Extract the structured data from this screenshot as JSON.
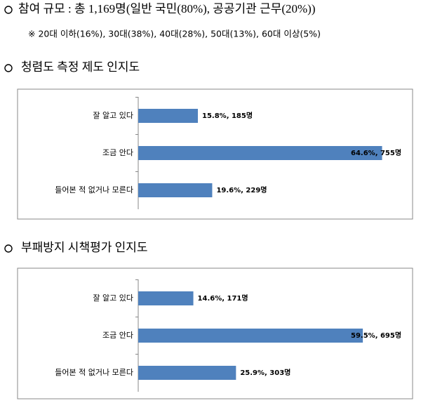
{
  "summary": {
    "title": "참여 규모 : 총 1,169명(일반 국민(80%), 공공기관 근무(20%))",
    "note": "※ 20대 이하(16%), 30대(38%), 40대(28%), 50대(13%), 60대 이상(5%)"
  },
  "chart_data": [
    {
      "type": "bar",
      "orientation": "horizontal",
      "title": "청렴도 측정 제도 인지도",
      "categories": [
        "잘 알고 있다",
        "조금 안다",
        "들어본 적 없거나 모른다"
      ],
      "values": [
        15.8,
        64.6,
        19.6
      ],
      "value_labels": [
        "15.8%, 185명",
        "64.6%, 755명",
        "19.6%, 229명"
      ],
      "color": "#4f81bd"
    },
    {
      "type": "bar",
      "orientation": "horizontal",
      "title": "부패방지 시책평가 인지도",
      "categories": [
        "잘 알고 있다",
        "조금 안다",
        "들어본 적 없거나 모른다"
      ],
      "values": [
        14.6,
        59.5,
        25.9
      ],
      "value_labels": [
        "14.6%, 171명",
        "59.5%, 695명",
        "25.9%, 303명"
      ],
      "color": "#4f81bd"
    }
  ]
}
